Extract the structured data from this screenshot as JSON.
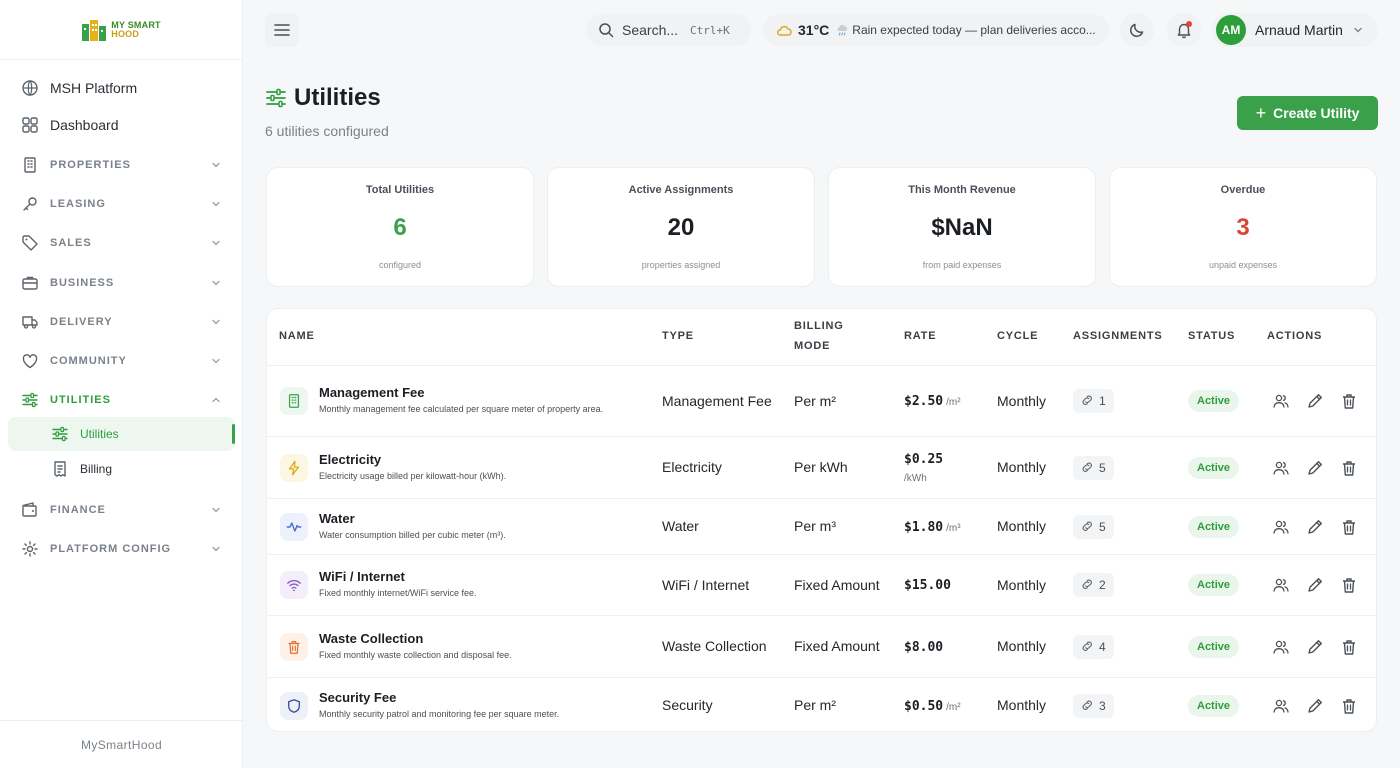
{
  "brand": {
    "line1": "MY SMART",
    "line2": "HOOD",
    "footer": "MySmartHood"
  },
  "sidebar": {
    "items": [
      {
        "key": "msh",
        "label": "MSH Platform",
        "type": "link",
        "icon": "globe-icon"
      },
      {
        "key": "dashboard",
        "label": "Dashboard",
        "type": "link",
        "icon": "grid-icon"
      },
      {
        "key": "properties",
        "label": "PROPERTIES",
        "type": "section",
        "icon": "building-icon"
      },
      {
        "key": "leasing",
        "label": "LEASING",
        "type": "section",
        "icon": "key-icon"
      },
      {
        "key": "sales",
        "label": "SALES",
        "type": "section",
        "icon": "tag-icon"
      },
      {
        "key": "business",
        "label": "BUSINESS",
        "type": "section",
        "icon": "briefcase-icon"
      },
      {
        "key": "delivery",
        "label": "DELIVERY",
        "type": "section",
        "icon": "truck-icon"
      },
      {
        "key": "community",
        "label": "COMMUNITY",
        "type": "section",
        "icon": "heart-icon"
      },
      {
        "key": "utilities",
        "label": "UTILITIES",
        "type": "section-open",
        "icon": "sliders-icon"
      },
      {
        "key": "finance",
        "label": "FINANCE",
        "type": "section",
        "icon": "wallet-icon"
      },
      {
        "key": "platform-config",
        "label": "PLATFORM CONFIG",
        "type": "section",
        "icon": "gear-icon"
      }
    ],
    "sub_items": [
      {
        "key": "utilities",
        "label": "Utilities",
        "active": true,
        "icon": "sliders-icon"
      },
      {
        "key": "billing",
        "label": "Billing",
        "active": false,
        "icon": "receipt-icon"
      }
    ]
  },
  "topbar": {
    "search_placeholder": "Search...",
    "search_shortcut": "Ctrl+K",
    "weather_temp": "31°C",
    "weather_message": "Rain expected today — plan deliveries acco...",
    "user_initials": "AM",
    "user_name": "Arnaud Martin"
  },
  "page": {
    "title": "Utilities",
    "subtitle": "6 utilities configured",
    "create_label": "Create Utility"
  },
  "stats": [
    {
      "title": "Total Utilities",
      "value": "6",
      "sub": "configured",
      "color": "#3aa14a"
    },
    {
      "title": "Active Assignments",
      "value": "20",
      "sub": "properties assigned",
      "color": "#1b1f23"
    },
    {
      "title": "This Month Revenue",
      "value": "$NaN",
      "sub": "from paid expenses",
      "color": "#1b1f23"
    },
    {
      "title": "Overdue",
      "value": "3",
      "sub": "unpaid expenses",
      "color": "#d9443a"
    }
  ],
  "table": {
    "columns": {
      "name": "NAME",
      "type": "TYPE",
      "billing_mode_1": "BILLING",
      "billing_mode_2": "MODE",
      "rate": "RATE",
      "cycle": "CYCLE",
      "assignments": "ASSIGNMENTS",
      "status": "STATUS",
      "actions": "ACTIONS"
    },
    "rows": [
      {
        "name": "Management Fee",
        "desc": "Monthly management fee calculated per square meter of property area.",
        "type": "Management Fee",
        "billing": "Per m²",
        "rate": "$2.50",
        "unit": "/m²",
        "cycle": "Monthly",
        "assignments": "1",
        "status": "Active",
        "icon": "building-icon",
        "icon_color": "#3aa14a",
        "icon_bg": "#eef7ef"
      },
      {
        "name": "Electricity",
        "desc": "Electricity usage billed per kilowatt-hour (kWh).",
        "type": "Electricity",
        "billing": "Per kWh",
        "rate": "$0.25",
        "unit": "/kWh",
        "cycle": "Monthly",
        "assignments": "5",
        "status": "Active",
        "icon": "lightning-icon",
        "icon_color": "#e0a91a",
        "icon_bg": "#fdf6e3"
      },
      {
        "name": "Water",
        "desc": "Water consumption billed per cubic meter (m³).",
        "type": "Water",
        "billing": "Per m³",
        "rate": "$1.80",
        "unit": "/m³",
        "cycle": "Monthly",
        "assignments": "5",
        "status": "Active",
        "icon": "activity-icon",
        "icon_color": "#4a6fd1",
        "icon_bg": "#edf1fb"
      },
      {
        "name": "WiFi / Internet",
        "desc": "Fixed monthly internet/WiFi service fee.",
        "type": "WiFi / Internet",
        "billing": "Fixed Amount",
        "rate": "$15.00",
        "unit": "",
        "cycle": "Monthly",
        "assignments": "2",
        "status": "Active",
        "icon": "wifi-icon",
        "icon_color": "#8b5cc7",
        "icon_bg": "#f3eefa"
      },
      {
        "name": "Waste Collection",
        "desc": "Fixed monthly waste collection and disposal fee.",
        "type": "Waste Collection",
        "billing": "Fixed Amount",
        "rate": "$8.00",
        "unit": "",
        "cycle": "Monthly",
        "assignments": "4",
        "status": "Active",
        "icon": "trash-icon",
        "icon_color": "#e0702a",
        "icon_bg": "#fdf1e8"
      },
      {
        "name": "Security Fee",
        "desc": "Monthly security patrol and monitoring fee per square meter.",
        "type": "Security",
        "billing": "Per m²",
        "rate": "$0.50",
        "unit": "/m²",
        "cycle": "Monthly",
        "assignments": "3",
        "status": "Active",
        "icon": "shield-icon",
        "icon_color": "#3a4f9e",
        "icon_bg": "#eef0f8"
      }
    ]
  }
}
